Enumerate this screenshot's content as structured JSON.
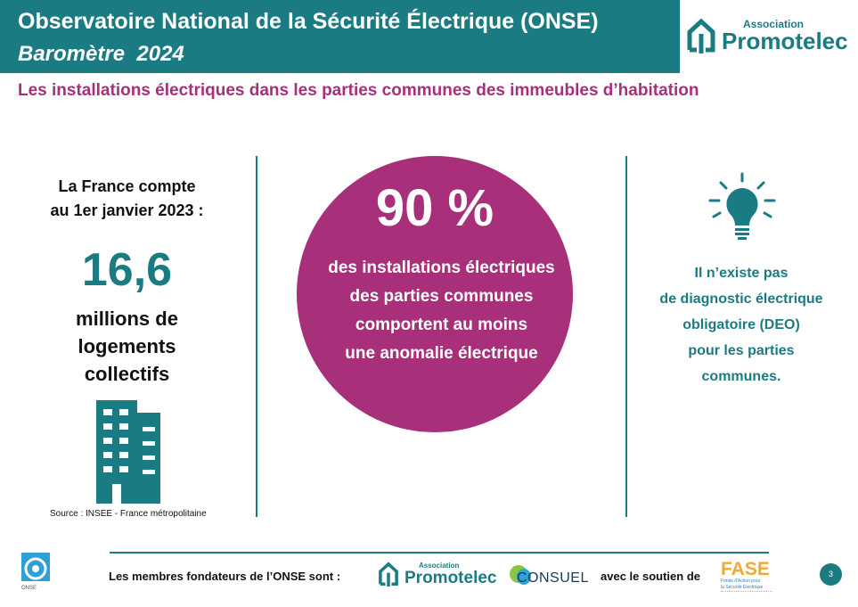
{
  "header": {
    "title": "Observatoire National de la Sécurité Électrique (ONSE)",
    "subtitle": "Baromètre  2024"
  },
  "logo": {
    "small": "Association",
    "name": "Promotelec"
  },
  "section_title": "Les installations électriques dans les parties communes des immeubles d’habitation",
  "left": {
    "intro": [
      "La France compte",
      "au 1er janvier 2023 :"
    ],
    "number": "16,6",
    "desc": [
      "millions de",
      "logements",
      "collectifs"
    ],
    "source": "Source : INSEE - France métropolitaine"
  },
  "middle": {
    "percent": "90 %",
    "lines": [
      "des installations électriques",
      "des parties communes",
      "comportent au moins",
      "une anomalie électrique"
    ]
  },
  "right": {
    "lines": [
      "Il n’existe pas",
      "de diagnostic électrique",
      "obligatoire (DEO)",
      "pour les parties",
      "communes."
    ]
  },
  "footer": {
    "members_text": "Les membres fondateurs de l’ONSE sont :",
    "consuel": "CONSUEL",
    "support_text": "avec le soutien de",
    "fase": "FASE",
    "fase_sub": [
      "Fonds d'Action pour",
      "la Sécurité Électrique"
    ],
    "onse": "ONSE",
    "page": "3"
  },
  "colors": {
    "teal": "#1b7b83",
    "magenta": "#a8307a"
  }
}
